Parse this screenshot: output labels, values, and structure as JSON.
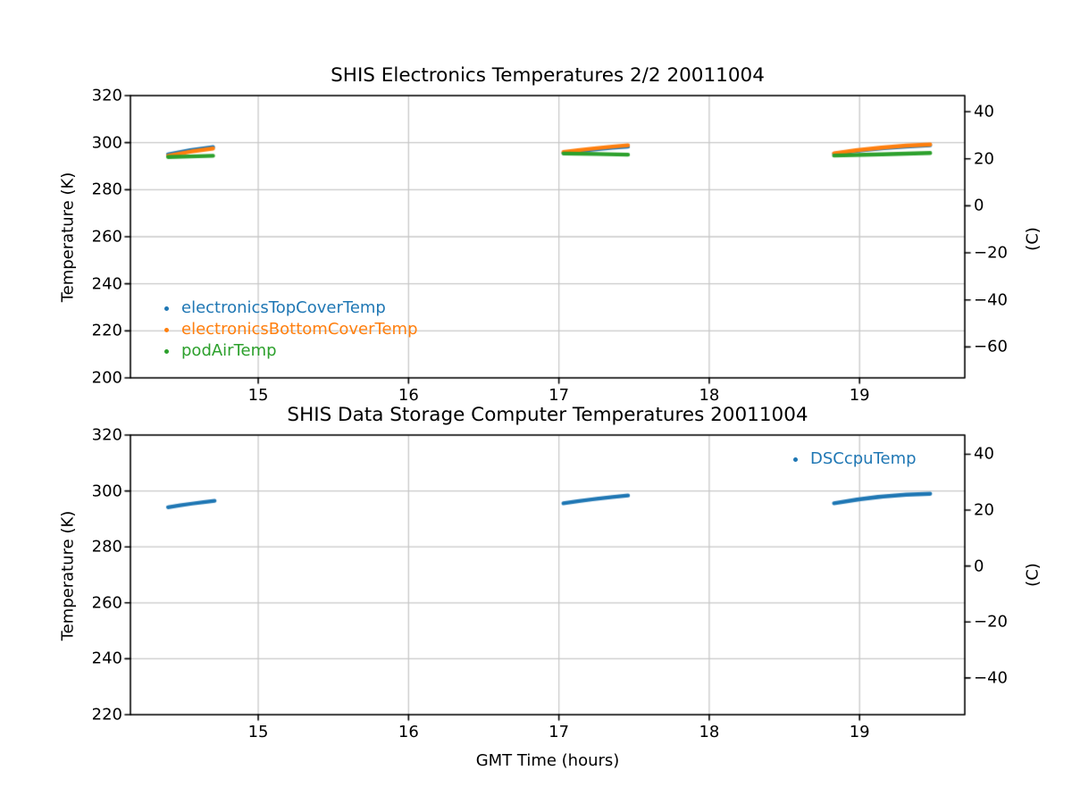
{
  "figure": {
    "background": "#ffffff",
    "grid_color": "#c8c8c8",
    "axis_color": "#000000",
    "text_color": "#000000"
  },
  "chart_data": [
    {
      "type": "line",
      "title": "SHIS Electronics Temperatures 2/2 20011004",
      "xlabel": "",
      "ylabel_left": "Temperature (K)",
      "ylabel_right": "(C)",
      "xlim": [
        14.15,
        19.7
      ],
      "ylim_left": [
        200,
        320
      ],
      "grid": true,
      "legend_position": "lower-left",
      "xticks": [
        15,
        16,
        17,
        18,
        19
      ],
      "xtick_labels": [
        "15",
        "16",
        "17",
        "18",
        "19"
      ],
      "yticks_left": [
        200,
        220,
        240,
        260,
        280,
        300,
        320
      ],
      "ytick_labels_left": [
        "200",
        "220",
        "240",
        "260",
        "280",
        "300",
        "320"
      ],
      "yticks_right_C": [
        40,
        20,
        0,
        -20,
        -40,
        -60
      ],
      "ytick_labels_right": [
        "40",
        "20",
        "0",
        "−20",
        "−40",
        "−60"
      ],
      "series": [
        {
          "name": "electronicsTopCoverTemp",
          "color": "#1f77b4",
          "marker": "point",
          "segments": [
            {
              "x": [
                14.4,
                14.55,
                14.7
              ],
              "y": [
                295.0,
                296.8,
                298.1
              ]
            },
            {
              "x": [
                17.03,
                17.25,
                17.46
              ],
              "y": [
                295.6,
                297.2,
                298.3
              ]
            },
            {
              "x": [
                18.83,
                19.15,
                19.47
              ],
              "y": [
                295.3,
                297.6,
                298.9
              ]
            }
          ]
        },
        {
          "name": "electronicsBottomCoverTemp",
          "color": "#ff7f0e",
          "marker": "point",
          "segments": [
            {
              "x": [
                14.4,
                14.55,
                14.7
              ],
              "y": [
                294.4,
                296.2,
                297.5
              ]
            },
            {
              "x": [
                17.03,
                17.25,
                17.46
              ],
              "y": [
                296.0,
                297.7,
                298.9
              ]
            },
            {
              "x": [
                18.83,
                19.15,
                19.47
              ],
              "y": [
                295.5,
                297.9,
                299.2
              ]
            }
          ]
        },
        {
          "name": "podAirTemp",
          "color": "#2ca02c",
          "marker": "point",
          "segments": [
            {
              "x": [
                14.4,
                14.55,
                14.7
              ],
              "y": [
                293.9,
                294.1,
                294.4
              ]
            },
            {
              "x": [
                17.03,
                17.25,
                17.46
              ],
              "y": [
                295.4,
                295.2,
                294.9
              ]
            },
            {
              "x": [
                18.83,
                19.15,
                19.47
              ],
              "y": [
                294.5,
                295.0,
                295.6
              ]
            }
          ]
        }
      ]
    },
    {
      "type": "line",
      "title": "SHIS Data Storage Computer Temperatures 20011004",
      "xlabel": "GMT Time (hours)",
      "ylabel_left": "Temperature (K)",
      "ylabel_right": "(C)",
      "xlim": [
        14.15,
        19.7
      ],
      "ylim_left": [
        220,
        320
      ],
      "grid": true,
      "legend_position": "upper-right",
      "xticks": [
        15,
        16,
        17,
        18,
        19
      ],
      "xtick_labels": [
        "15",
        "16",
        "17",
        "18",
        "19"
      ],
      "yticks_left": [
        220,
        240,
        260,
        280,
        300,
        320
      ],
      "ytick_labels_left": [
        "220",
        "240",
        "260",
        "280",
        "300",
        "320"
      ],
      "yticks_right_C": [
        40,
        20,
        0,
        -20,
        -40
      ],
      "ytick_labels_right": [
        "40",
        "20",
        "0",
        "−20",
        "−40"
      ],
      "series": [
        {
          "name": "DSCcpuTemp",
          "color": "#1f77b4",
          "marker": "point",
          "segments": [
            {
              "x": [
                14.4,
                14.56,
                14.71
              ],
              "y": [
                294.2,
                295.5,
                296.5
              ]
            },
            {
              "x": [
                17.03,
                17.25,
                17.46
              ],
              "y": [
                295.6,
                297.2,
                298.4
              ]
            },
            {
              "x": [
                18.83,
                19.15,
                19.47
              ],
              "y": [
                295.6,
                298.0,
                299.0
              ]
            }
          ]
        }
      ]
    }
  ]
}
